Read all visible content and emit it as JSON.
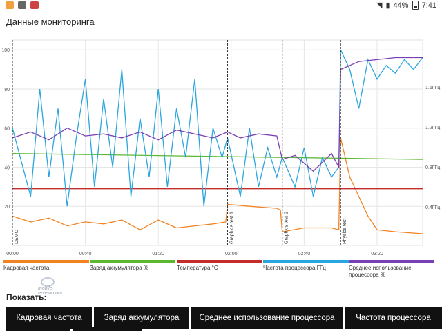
{
  "status_bar": {
    "battery": "44%",
    "time": "7:41"
  },
  "title": "Данные мониторинга",
  "chart_data": {
    "type": "line",
    "x_ticks": [
      "00:00",
      "00:40",
      "01:20",
      "02:00",
      "02:40",
      "03:20"
    ],
    "y_left_ticks": [
      20,
      40,
      60,
      80,
      100
    ],
    "y_left_lim": [
      0,
      105
    ],
    "y_right_ticks": [
      "0.4ГГц",
      "0.8ГГц",
      "1.2ГГц",
      "1.6ГГц"
    ],
    "x_range_seconds": [
      0,
      225
    ],
    "markers": [
      {
        "label": "DEMO",
        "t": 0
      },
      {
        "label": "Graphics test 1",
        "t": 118
      },
      {
        "label": "Graphics test 2",
        "t": 148
      },
      {
        "label": "Physics test",
        "t": 180
      }
    ],
    "series": [
      {
        "name": "Кадровая частота",
        "color": "#f28322",
        "t": [
          0,
          10,
          20,
          30,
          40,
          50,
          60,
          70,
          80,
          90,
          100,
          110,
          117,
          118,
          130,
          145,
          147,
          148,
          160,
          175,
          179,
          180,
          185,
          190,
          195,
          200,
          210,
          225
        ],
        "values": [
          15,
          12,
          14,
          10,
          12,
          11,
          13,
          8,
          13,
          9,
          10,
          11,
          12,
          21,
          20,
          19,
          18,
          7,
          9,
          9,
          8,
          55,
          35,
          25,
          15,
          8,
          7,
          6
        ]
      },
      {
        "name": "Заряд аккумулятора %",
        "color": "#5cb82f",
        "t": [
          0,
          225
        ],
        "values": [
          47,
          44
        ]
      },
      {
        "name": "Температура °C",
        "color": "#c42b2b",
        "t": [
          0,
          225
        ],
        "values": [
          29,
          29
        ]
      },
      {
        "name": "Частота процессора ГГц",
        "color": "#2aa6de",
        "t": [
          0,
          10,
          15,
          20,
          25,
          30,
          35,
          40,
          45,
          50,
          55,
          60,
          65,
          70,
          75,
          80,
          85,
          90,
          95,
          100,
          105,
          110,
          115,
          118,
          125,
          130,
          135,
          140,
          145,
          148,
          155,
          160,
          165,
          170,
          175,
          179,
          180,
          185,
          190,
          195,
          200,
          205,
          210,
          215,
          220,
          225
        ],
        "values": [
          60,
          25,
          80,
          35,
          70,
          20,
          55,
          85,
          30,
          75,
          40,
          90,
          25,
          65,
          35,
          80,
          30,
          70,
          45,
          85,
          20,
          60,
          45,
          55,
          25,
          60,
          30,
          50,
          35,
          45,
          30,
          50,
          25,
          45,
          35,
          40,
          100,
          90,
          70,
          95,
          85,
          92,
          88,
          95,
          90,
          96
        ]
      },
      {
        "name": "Среднее использование процессора %",
        "color": "#7b3fb4",
        "t": [
          0,
          10,
          20,
          30,
          40,
          50,
          60,
          70,
          80,
          90,
          100,
          110,
          118,
          125,
          135,
          145,
          148,
          155,
          165,
          175,
          179,
          180,
          190,
          200,
          210,
          225
        ],
        "values": [
          55,
          58,
          54,
          60,
          56,
          57,
          55,
          58,
          54,
          59,
          57,
          55,
          58,
          55,
          57,
          56,
          44,
          46,
          38,
          47,
          40,
          90,
          94,
          95,
          96,
          96
        ]
      }
    ]
  },
  "show_label": "Показать:",
  "buttons": [
    "Кадровая частота",
    "Заряд аккумулятора",
    "Среднее использование процессора",
    "Частота процессора"
  ],
  "watermark": "mobile-review.com"
}
